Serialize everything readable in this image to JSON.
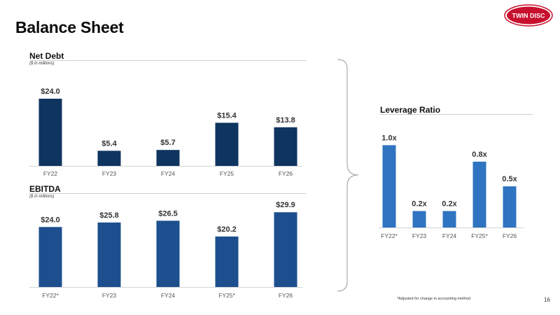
{
  "page": {
    "title": "Balance Sheet",
    "page_number": "16",
    "footnote": "*Adjusted for change in accounting method",
    "logo_text": "TWIN DISC"
  },
  "colors": {
    "net_debt_bar": "#0f3460",
    "ebitda_bar": "#1d4f8f",
    "leverage_bar": "#2f74c0",
    "logo_red": "#c8102e"
  },
  "chart_data": [
    {
      "type": "bar",
      "title": "Net Debt",
      "subtitle": "($ in millions)",
      "categories": [
        "FY22",
        "FY23",
        "FY24",
        "FY25",
        "FY26"
      ],
      "values": [
        24.0,
        5.4,
        5.7,
        15.4,
        13.8
      ],
      "value_labels": [
        "$24.0",
        "$5.4",
        "$5.7",
        "$15.4",
        "$13.8"
      ],
      "ylim": [
        0,
        30
      ],
      "grid": false
    },
    {
      "type": "bar",
      "title": "EBITDA",
      "subtitle": "($ in millions)",
      "categories": [
        "FY22*",
        "FY23",
        "FY24",
        "FY25*",
        "FY26"
      ],
      "values": [
        24.0,
        25.8,
        26.5,
        20.2,
        29.9
      ],
      "value_labels": [
        "$24.0",
        "$25.8",
        "$26.5",
        "$20.2",
        "$29.9"
      ],
      "ylim": [
        0,
        35
      ],
      "grid": false
    },
    {
      "type": "bar",
      "title": "Leverage Ratio",
      "categories": [
        "FY22*",
        "FY23",
        "FY24",
        "FY25*",
        "FY26"
      ],
      "values": [
        1.0,
        0.2,
        0.2,
        0.8,
        0.5
      ],
      "value_labels": [
        "1.0x",
        "0.2x",
        "0.2x",
        "0.8x",
        "0.5x"
      ],
      "ylim": [
        0,
        1.25
      ],
      "grid": false
    }
  ]
}
